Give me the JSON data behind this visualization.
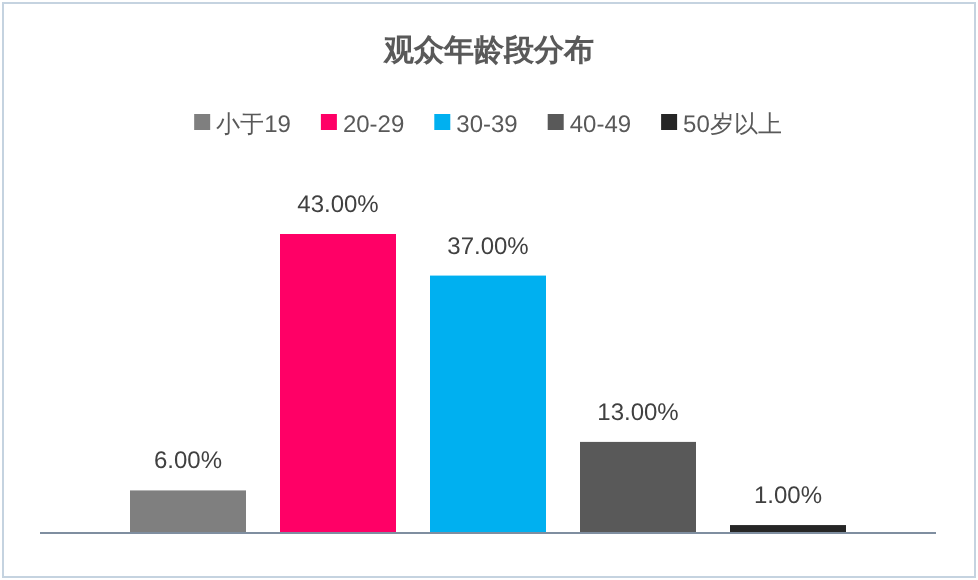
{
  "chart_data": {
    "type": "bar",
    "title": "观众年龄段分布",
    "categories": [
      null
    ],
    "series": [
      {
        "name": "小于19",
        "color": "#7f7f7f",
        "values": [
          6
        ],
        "value_labels": [
          "6.00%"
        ]
      },
      {
        "name": "20-29",
        "color": "#ff0066",
        "values": [
          43
        ],
        "value_labels": [
          "43.00%"
        ]
      },
      {
        "name": "30-39",
        "color": "#00b0f0",
        "values": [
          37
        ],
        "value_labels": [
          "37.00%"
        ]
      },
      {
        "name": "40-49",
        "color": "#595959",
        "values": [
          13
        ],
        "value_labels": [
          "13.00%"
        ]
      },
      {
        "name": "50岁以上",
        "color": "#262626",
        "values": [
          1
        ],
        "value_labels": [
          "1.00%"
        ]
      }
    ],
    "legend": "top"
  }
}
